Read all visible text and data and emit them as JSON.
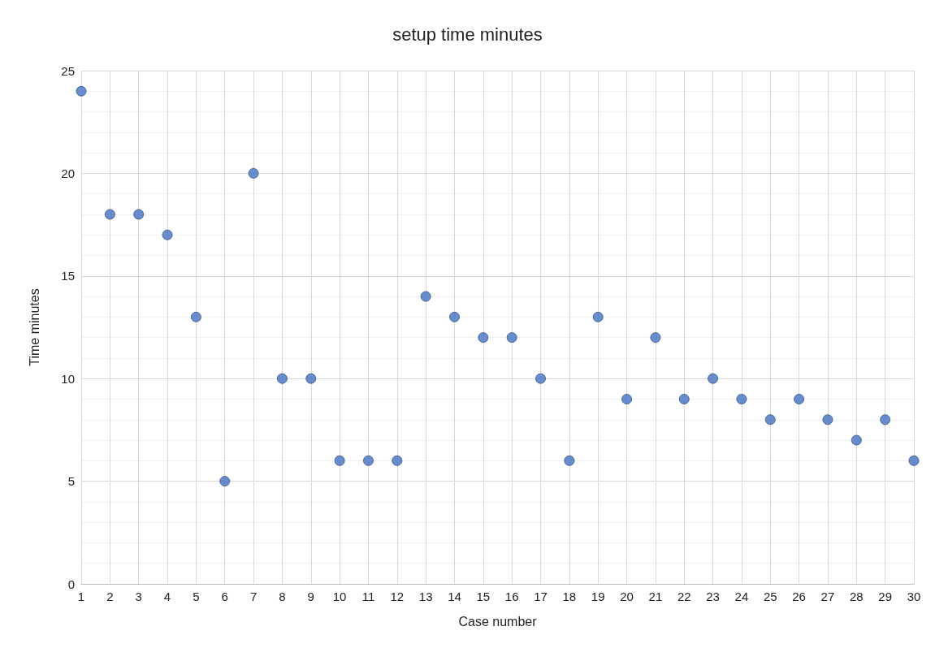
{
  "chart_data": {
    "type": "scatter",
    "title": "setup time minutes",
    "xlabel": "Case number",
    "ylabel": "Time minutes",
    "x": [
      1,
      2,
      3,
      4,
      5,
      6,
      7,
      8,
      9,
      10,
      11,
      12,
      13,
      14,
      15,
      16,
      17,
      18,
      19,
      20,
      21,
      22,
      23,
      24,
      25,
      26,
      27,
      28,
      29,
      30
    ],
    "values": [
      24,
      18,
      18,
      17,
      13,
      5,
      20,
      10,
      10,
      6,
      6,
      6,
      14,
      13,
      12,
      12,
      10,
      6,
      13,
      9,
      12,
      9,
      10,
      9,
      8,
      9,
      8,
      7,
      8,
      6
    ],
    "color": "#4472c4",
    "marker": "circle",
    "xlim": [
      1,
      30
    ],
    "xticks": [
      1,
      2,
      3,
      4,
      5,
      6,
      7,
      8,
      9,
      10,
      11,
      12,
      13,
      14,
      15,
      16,
      17,
      18,
      19,
      20,
      21,
      22,
      23,
      24,
      25,
      26,
      27,
      28,
      29,
      30
    ],
    "ylim": [
      0,
      25
    ],
    "yticks": [
      0,
      5,
      10,
      15,
      20,
      25
    ],
    "grid": true
  }
}
